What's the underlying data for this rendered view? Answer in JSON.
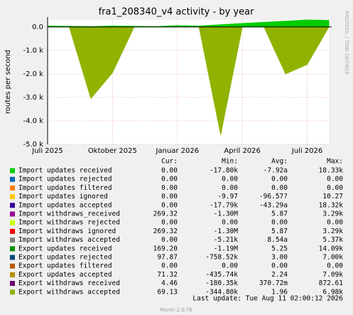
{
  "chart_data": {
    "type": "area",
    "title": "fra1_208340_v4 activity - by year",
    "ylabel": "routes per second",
    "watermark": "RRDTOOL / TOBI OETIKER",
    "x": [
      "2025-07",
      "2025-08",
      "2025-09",
      "2025-10",
      "2025-11",
      "2025-12",
      "2026-01",
      "2026-02",
      "2026-03",
      "2026-04",
      "2026-05",
      "2026-06",
      "2026-07",
      "2026-08"
    ],
    "xlim": [
      "2025-07",
      "2026-08"
    ],
    "xticks": [
      {
        "value": "2025-07",
        "label": "Juli 2025"
      },
      {
        "value": "2025-10",
        "label": "Oktober 2025"
      },
      {
        "value": "2026-01",
        "label": "Januar 2026"
      },
      {
        "value": "2026-04",
        "label": "April 2026"
      },
      {
        "value": "2026-07",
        "label": "Juli 2026"
      }
    ],
    "ylim": [
      -5000,
      300
    ],
    "yticks": [
      {
        "value": 0,
        "label": "0.0"
      },
      {
        "value": -1000,
        "label": "-1.0 k"
      },
      {
        "value": -2000,
        "label": "-2.0 k"
      },
      {
        "value": -3000,
        "label": "-3.0 k"
      },
      {
        "value": -4000,
        "label": "-4.0 k"
      },
      {
        "value": -5000,
        "label": "-5.0 k"
      }
    ],
    "grid": true,
    "legend_columns": [
      "Cur:",
      "Min:",
      "Avg:",
      "Max:"
    ],
    "series": [
      {
        "name": "Import updates received",
        "color": "#00cc00",
        "stats": [
          "0.00",
          "-17.80k",
          "-7.92a",
          "18.33k"
        ],
        "values": [
          40,
          30,
          20,
          40,
          30,
          20,
          60,
          40,
          100,
          150,
          200,
          250,
          300,
          280
        ]
      },
      {
        "name": "Import updates rejected",
        "color": "#0066b3",
        "stats": [
          "0.00",
          "0.00",
          "0.00",
          "0.00"
        ]
      },
      {
        "name": "Import updates filtered",
        "color": "#ff8000",
        "stats": [
          "0.00",
          "0.00",
          "0.00",
          "0.00"
        ]
      },
      {
        "name": "Import updates ignored",
        "color": "#ffcc00",
        "stats": [
          "0.00",
          "-9.97",
          "-96.57?",
          "10.27"
        ]
      },
      {
        "name": "Import updates accepted",
        "color": "#330099",
        "stats": [
          "0.00",
          "-17.79k",
          "-43.29a",
          "18.32k"
        ]
      },
      {
        "name": "Import withdraws_received",
        "color": "#990099",
        "stats": [
          "269.32",
          "-1.30M",
          "5.87",
          "3.29k"
        ]
      },
      {
        "name": "Import withdraws rejected",
        "color": "#ccff00",
        "stats": [
          "0.00",
          "0.00",
          "0.00",
          "0.00"
        ]
      },
      {
        "name": "Import withdraws ignored",
        "color": "#ff0000",
        "stats": [
          "269.32",
          "-1.30M",
          "5.87",
          "3.29k"
        ]
      },
      {
        "name": "Import withdraws accepted",
        "color": "#808080",
        "stats": [
          "0.00",
          "-5.21k",
          "8.54a",
          "5.37k"
        ]
      },
      {
        "name": "Export updates received",
        "color": "#008f00",
        "stats": [
          "169.20",
          "-1.19M",
          "5.25",
          "14.09k"
        ]
      },
      {
        "name": "Export updates rejected",
        "color": "#00487d",
        "stats": [
          "97.87",
          "-758.52k",
          "3.00",
          "7.00k"
        ]
      },
      {
        "name": "Export updates filtered",
        "color": "#b35a00",
        "stats": [
          "0.00",
          "0.00",
          "0.00",
          "0.00"
        ]
      },
      {
        "name": "Export updates accepted",
        "color": "#b38f00",
        "stats": [
          "71.32",
          "-435.74k",
          "2.24",
          "7.09k"
        ]
      },
      {
        "name": "Export withdraws received",
        "color": "#6b006b",
        "stats": [
          "4.46",
          "-180.35k",
          "370.72m",
          "872.61"
        ]
      },
      {
        "name": "Export withdraws accepted",
        "color": "#8fb300",
        "stats": [
          "69.13",
          "-344.80k",
          "1.96",
          "6.98k"
        ],
        "values": [
          0,
          0,
          -3050,
          -1950,
          0,
          0,
          0,
          0,
          -4600,
          0,
          0,
          -2000,
          -1600,
          0
        ]
      }
    ],
    "last_update": "Last update: Tue Aug 11 02:00:12 2026",
    "footer": "Munin 2.0.76"
  }
}
